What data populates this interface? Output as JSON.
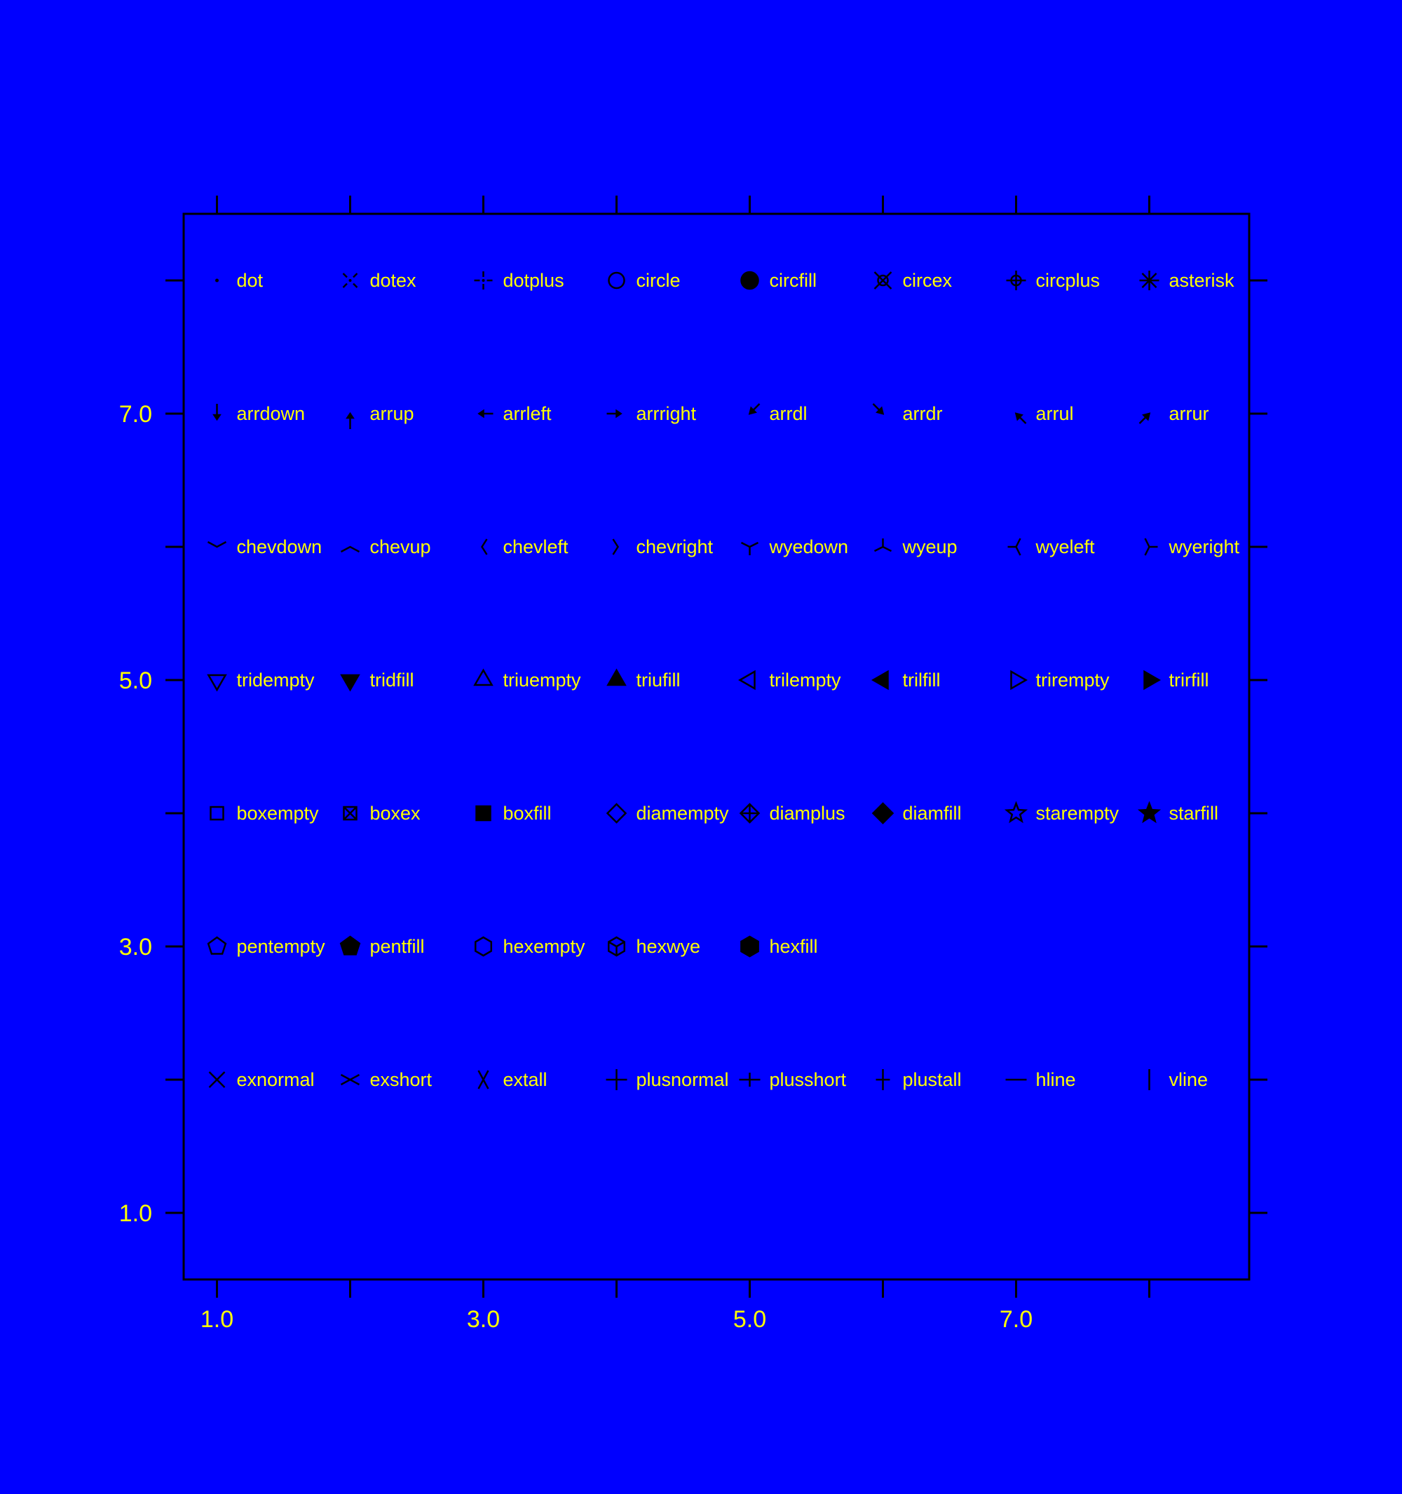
{
  "background": "#0000ff",
  "colors": {
    "frame": "#000000",
    "marker": "#000000",
    "text": "#ffff00"
  },
  "chart_data": {
    "type": "scatter",
    "title": "",
    "xlabel": "",
    "ylabel": "",
    "xlim": [
      0.75,
      8.75
    ],
    "ylim": [
      0.5,
      8.5
    ],
    "xticks": [
      1,
      2,
      3,
      4,
      5,
      6,
      7,
      8
    ],
    "xtick_labels": [
      {
        "value": 1,
        "label": "1.0"
      },
      {
        "value": 3,
        "label": "3.0"
      },
      {
        "value": 5,
        "label": "5.0"
      },
      {
        "value": 7,
        "label": "7.0"
      }
    ],
    "yticks": [
      1,
      2,
      3,
      4,
      5,
      6,
      7,
      8
    ],
    "ytick_labels": [
      {
        "value": 1,
        "label": "1.0"
      },
      {
        "value": 3,
        "label": "3.0"
      },
      {
        "value": 5,
        "label": "5.0"
      },
      {
        "value": 7,
        "label": "7.0"
      }
    ],
    "grid": false,
    "legend": false,
    "points": [
      {
        "x": 1,
        "y": 8,
        "symbol": "dot",
        "label": "dot"
      },
      {
        "x": 2,
        "y": 8,
        "symbol": "dotex",
        "label": "dotex"
      },
      {
        "x": 3,
        "y": 8,
        "symbol": "dotplus",
        "label": "dotplus"
      },
      {
        "x": 4,
        "y": 8,
        "symbol": "circle",
        "label": "circle"
      },
      {
        "x": 5,
        "y": 8,
        "symbol": "circfill",
        "label": "circfill"
      },
      {
        "x": 6,
        "y": 8,
        "symbol": "circex",
        "label": "circex"
      },
      {
        "x": 7,
        "y": 8,
        "symbol": "circplus",
        "label": "circplus"
      },
      {
        "x": 8,
        "y": 8,
        "symbol": "asterisk",
        "label": "asterisk"
      },
      {
        "x": 1,
        "y": 7,
        "symbol": "arrdown",
        "label": "arrdown"
      },
      {
        "x": 2,
        "y": 7,
        "symbol": "arrup",
        "label": "arrup"
      },
      {
        "x": 3,
        "y": 7,
        "symbol": "arrleft",
        "label": "arrleft"
      },
      {
        "x": 4,
        "y": 7,
        "symbol": "arrright",
        "label": "arrright"
      },
      {
        "x": 5,
        "y": 7,
        "symbol": "arrdl",
        "label": "arrdl"
      },
      {
        "x": 6,
        "y": 7,
        "symbol": "arrdr",
        "label": "arrdr"
      },
      {
        "x": 7,
        "y": 7,
        "symbol": "arrul",
        "label": "arrul"
      },
      {
        "x": 8,
        "y": 7,
        "symbol": "arrur",
        "label": "arrur"
      },
      {
        "x": 1,
        "y": 6,
        "symbol": "chevdown",
        "label": "chevdown"
      },
      {
        "x": 2,
        "y": 6,
        "symbol": "chevup",
        "label": "chevup"
      },
      {
        "x": 3,
        "y": 6,
        "symbol": "chevleft",
        "label": "chevleft"
      },
      {
        "x": 4,
        "y": 6,
        "symbol": "chevright",
        "label": "chevright"
      },
      {
        "x": 5,
        "y": 6,
        "symbol": "wyedown",
        "label": "wyedown"
      },
      {
        "x": 6,
        "y": 6,
        "symbol": "wyeup",
        "label": "wyeup"
      },
      {
        "x": 7,
        "y": 6,
        "symbol": "wyeleft",
        "label": "wyeleft"
      },
      {
        "x": 8,
        "y": 6,
        "symbol": "wyeright",
        "label": "wyeright"
      },
      {
        "x": 1,
        "y": 5,
        "symbol": "tridempty",
        "label": "tridempty"
      },
      {
        "x": 2,
        "y": 5,
        "symbol": "tridfill",
        "label": "tridfill"
      },
      {
        "x": 3,
        "y": 5,
        "symbol": "triuempty",
        "label": "triuempty"
      },
      {
        "x": 4,
        "y": 5,
        "symbol": "triufill",
        "label": "triufill"
      },
      {
        "x": 5,
        "y": 5,
        "symbol": "trilempty",
        "label": "trilempty"
      },
      {
        "x": 6,
        "y": 5,
        "symbol": "trilfill",
        "label": "trilfill"
      },
      {
        "x": 7,
        "y": 5,
        "symbol": "trirempty",
        "label": "trirempty"
      },
      {
        "x": 8,
        "y": 5,
        "symbol": "trirfill",
        "label": "trirfill"
      },
      {
        "x": 1,
        "y": 4,
        "symbol": "boxempty",
        "label": "boxempty"
      },
      {
        "x": 2,
        "y": 4,
        "symbol": "boxex",
        "label": "boxex"
      },
      {
        "x": 3,
        "y": 4,
        "symbol": "boxfill",
        "label": "boxfill"
      },
      {
        "x": 4,
        "y": 4,
        "symbol": "diamempty",
        "label": "diamempty"
      },
      {
        "x": 5,
        "y": 4,
        "symbol": "diamplus",
        "label": "diamplus"
      },
      {
        "x": 6,
        "y": 4,
        "symbol": "diamfill",
        "label": "diamfill"
      },
      {
        "x": 7,
        "y": 4,
        "symbol": "starempty",
        "label": "starempty"
      },
      {
        "x": 8,
        "y": 4,
        "symbol": "starfill",
        "label": "starfill"
      },
      {
        "x": 1,
        "y": 3,
        "symbol": "pentempty",
        "label": "pentempty"
      },
      {
        "x": 2,
        "y": 3,
        "symbol": "pentfill",
        "label": "pentfill"
      },
      {
        "x": 3,
        "y": 3,
        "symbol": "hexempty",
        "label": "hexempty"
      },
      {
        "x": 4,
        "y": 3,
        "symbol": "hexwye",
        "label": "hexwye"
      },
      {
        "x": 5,
        "y": 3,
        "symbol": "hexfill",
        "label": "hexfill"
      },
      {
        "x": 1,
        "y": 2,
        "symbol": "exnormal",
        "label": "exnormal"
      },
      {
        "x": 2,
        "y": 2,
        "symbol": "exshort",
        "label": "exshort"
      },
      {
        "x": 3,
        "y": 2,
        "symbol": "extall",
        "label": "extall"
      },
      {
        "x": 4,
        "y": 2,
        "symbol": "plusnormal",
        "label": "plusnormal"
      },
      {
        "x": 5,
        "y": 2,
        "symbol": "plusshort",
        "label": "plusshort"
      },
      {
        "x": 6,
        "y": 2,
        "symbol": "plustall",
        "label": "plustall"
      },
      {
        "x": 7,
        "y": 2,
        "symbol": "hline",
        "label": "hline"
      },
      {
        "x": 8,
        "y": 2,
        "symbol": "vline",
        "label": "vline"
      }
    ]
  }
}
